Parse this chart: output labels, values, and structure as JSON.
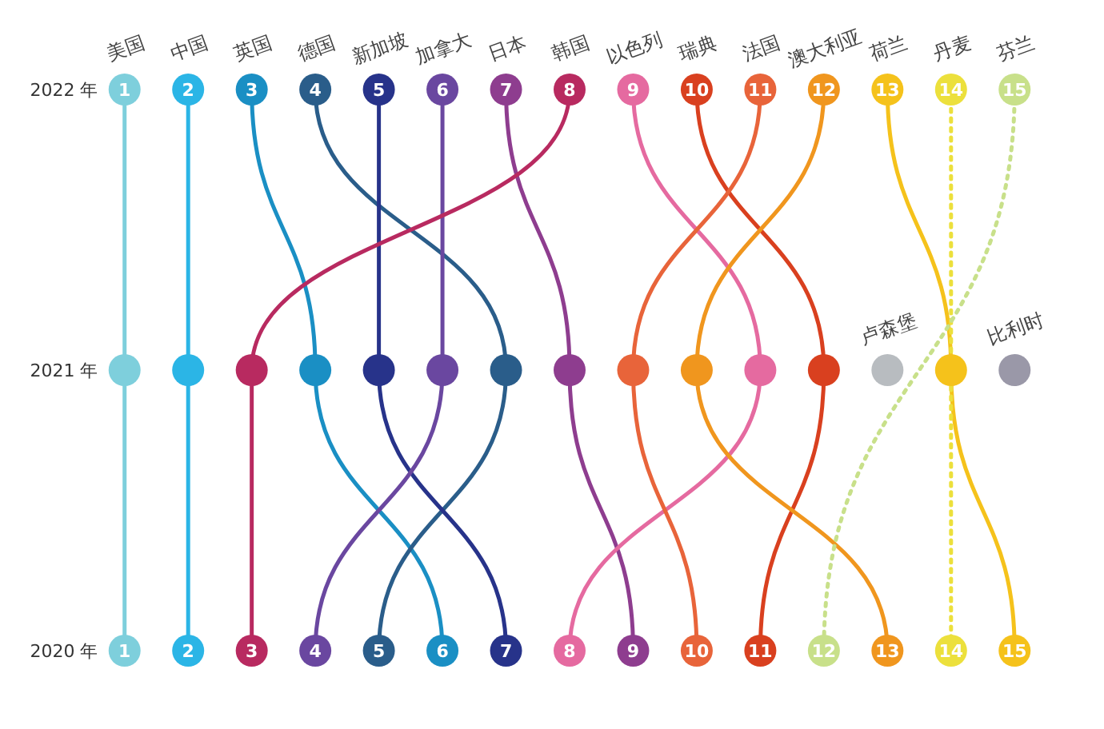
{
  "chart_data": {
    "type": "line",
    "orientation": "horizontal",
    "categories": [
      "2022 年",
      "2021 年",
      "2020 年"
    ],
    "tick_labels": "y",
    "marker": "circle",
    "line_style": "solid",
    "legend": false,
    "grid": false,
    "series": [
      {
        "name": "美国",
        "color": "#7ecfdc",
        "values": [
          1,
          1,
          1
        ],
        "value_labels": [
          "1",
          null,
          "1"
        ]
      },
      {
        "name": "中国",
        "color": "#2bb5e6",
        "values": [
          2,
          2,
          2
        ],
        "value_labels": [
          "2",
          null,
          "2"
        ]
      },
      {
        "name": "英国",
        "color": "#1a8fc4",
        "values": [
          3,
          4,
          6
        ],
        "value_labels": [
          "3",
          null,
          "6"
        ]
      },
      {
        "name": "德国",
        "color": "#2a5d8a",
        "values": [
          4,
          7,
          5
        ],
        "value_labels": [
          "4",
          null,
          "5"
        ]
      },
      {
        "name": "新加坡",
        "color": "#27338a",
        "values": [
          5,
          5,
          7
        ],
        "value_labels": [
          "5",
          null,
          "7"
        ]
      },
      {
        "name": "加拿大",
        "color": "#6a47a0",
        "values": [
          6,
          6,
          4
        ],
        "value_labels": [
          "6",
          null,
          "4"
        ]
      },
      {
        "name": "日本",
        "color": "#8e3d8f",
        "values": [
          7,
          8,
          9
        ],
        "value_labels": [
          "7",
          null,
          "9"
        ]
      },
      {
        "name": "韩国",
        "color": "#b82a60",
        "values": [
          8,
          3,
          3
        ],
        "value_labels": [
          "8",
          null,
          "3"
        ]
      },
      {
        "name": "以色列",
        "color": "#e56aa0",
        "values": [
          9,
          11,
          8
        ],
        "value_labels": [
          "9",
          null,
          "8"
        ]
      },
      {
        "name": "瑞典",
        "color": "#d9401f",
        "values": [
          10,
          12,
          11
        ],
        "value_labels": [
          "10",
          null,
          "11"
        ]
      },
      {
        "name": "法国",
        "color": "#e8643a",
        "values": [
          11,
          9,
          10
        ],
        "value_labels": [
          "11",
          null,
          "10"
        ]
      },
      {
        "name": "澳大利亚",
        "color": "#f0961e",
        "values": [
          12,
          10,
          13
        ],
        "value_labels": [
          "12",
          null,
          "13"
        ]
      },
      {
        "name": "荷兰",
        "color": "#f5c21b",
        "values": [
          13,
          14,
          15
        ],
        "value_labels": [
          "13",
          null,
          "15"
        ]
      },
      {
        "name": "丹麦",
        "color": "#ece03c",
        "line_style": "dotted",
        "values": [
          14,
          null,
          14
        ],
        "value_labels": [
          "14",
          null,
          "14"
        ]
      },
      {
        "name": "芬兰",
        "color": "#c8e08a",
        "line_style": "dotted",
        "values": [
          15,
          null,
          12
        ],
        "value_labels": [
          "15",
          null,
          "12"
        ]
      },
      {
        "name": "卢森堡",
        "color": "#b8bcc0",
        "values": [
          null,
          13,
          null
        ],
        "value_labels": [
          null,
          null,
          null
        ]
      },
      {
        "name": "比利时",
        "color": "#9a98a8",
        "values": [
          null,
          15,
          null
        ],
        "value_labels": [
          null,
          null,
          null
        ]
      }
    ]
  }
}
